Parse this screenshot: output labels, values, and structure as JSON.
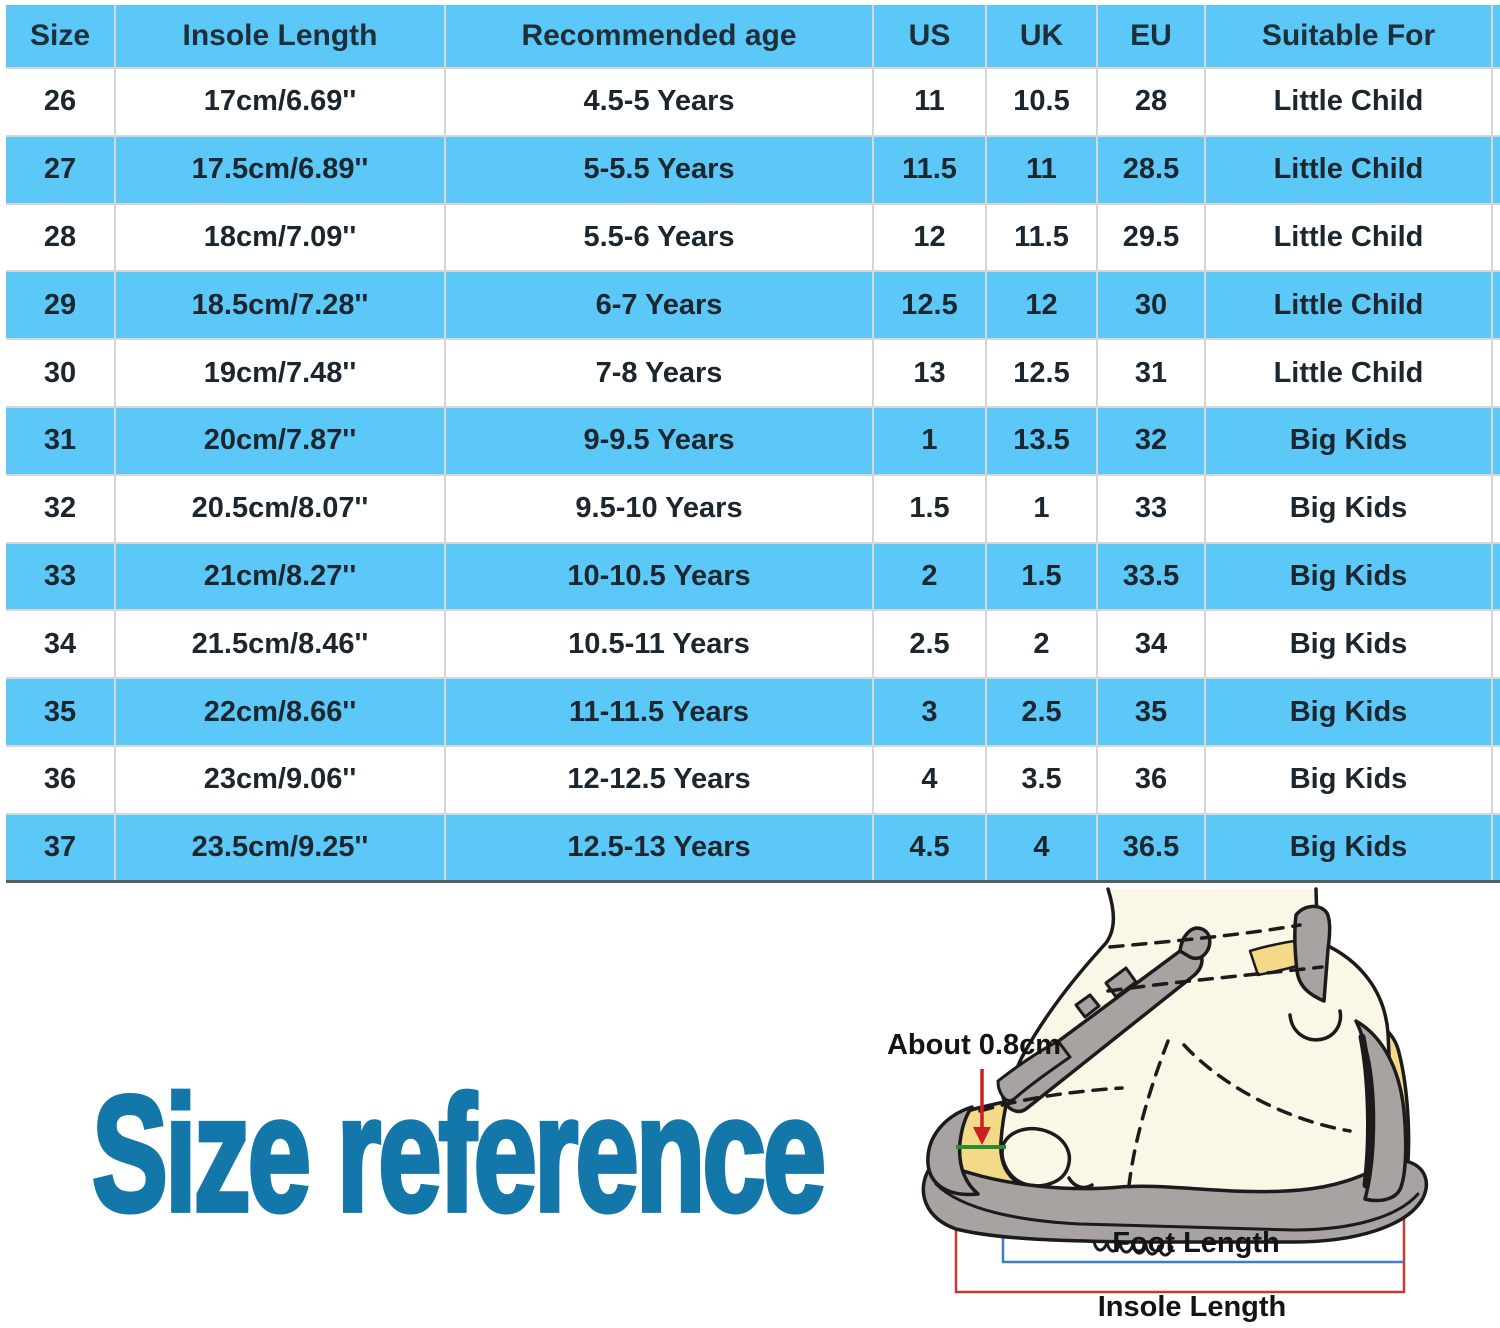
{
  "page": {
    "background": "#ffffff"
  },
  "table": {
    "columns": [
      "Size",
      "Insole Length",
      "Recommended age",
      "US",
      "UK",
      "EU",
      "Suitable For"
    ],
    "rows": [
      [
        "26",
        "17cm/6.69''",
        "4.5-5 Years",
        "11",
        "10.5",
        "28",
        "Little Child"
      ],
      [
        "27",
        "17.5cm/6.89''",
        "5-5.5 Years",
        "11.5",
        "11",
        "28.5",
        "Little Child"
      ],
      [
        "28",
        "18cm/7.09''",
        "5.5-6 Years",
        "12",
        "11.5",
        "29.5",
        "Little Child"
      ],
      [
        "29",
        "18.5cm/7.28''",
        "6-7 Years",
        "12.5",
        "12",
        "30",
        "Little Child"
      ],
      [
        "30",
        "19cm/7.48''",
        "7-8 Years",
        "13",
        "12.5",
        "31",
        "Little Child"
      ],
      [
        "31",
        "20cm/7.87''",
        "9-9.5 Years",
        "1",
        "13.5",
        "32",
        "Big Kids"
      ],
      [
        "32",
        "20.5cm/8.07''",
        "9.5-10 Years",
        "1.5",
        "1",
        "33",
        "Big Kids"
      ],
      [
        "33",
        "21cm/8.27''",
        "10-10.5 Years",
        "2",
        "1.5",
        "33.5",
        "Big Kids"
      ],
      [
        "34",
        "21.5cm/8.46''",
        "10.5-11 Years",
        "2.5",
        "2",
        "34",
        "Big Kids"
      ],
      [
        "35",
        "22cm/8.66''",
        "11-11.5 Years",
        "3",
        "2.5",
        "35",
        "Big Kids"
      ],
      [
        "36",
        "23cm/9.06''",
        "12-12.5 Years",
        "4",
        "3.5",
        "36",
        "Big Kids"
      ],
      [
        "37",
        "23.5cm/9.25''",
        "12.5-13 Years",
        "4.5",
        "4",
        "36.5",
        "Big Kids"
      ]
    ],
    "stripe_blue": "#5bc8f7",
    "grid_line": "#d6d6d6",
    "bottom_border": "#5a5a5a",
    "header_text_color": "#1e2e3a",
    "cell_text_color": "#1c262e"
  },
  "size_reference": {
    "title": "Size reference",
    "title_color": "#1377a9",
    "gap_annotation": "About 0.8cm",
    "foot_length_label": "Foot Length",
    "insole_length_label": "Insole Length",
    "foot_length_line_color": "#3b7fc4",
    "insole_length_line_color": "#c23a34",
    "gap_line_color": "#2e8b2e",
    "arrow_color": "#cc2020"
  }
}
